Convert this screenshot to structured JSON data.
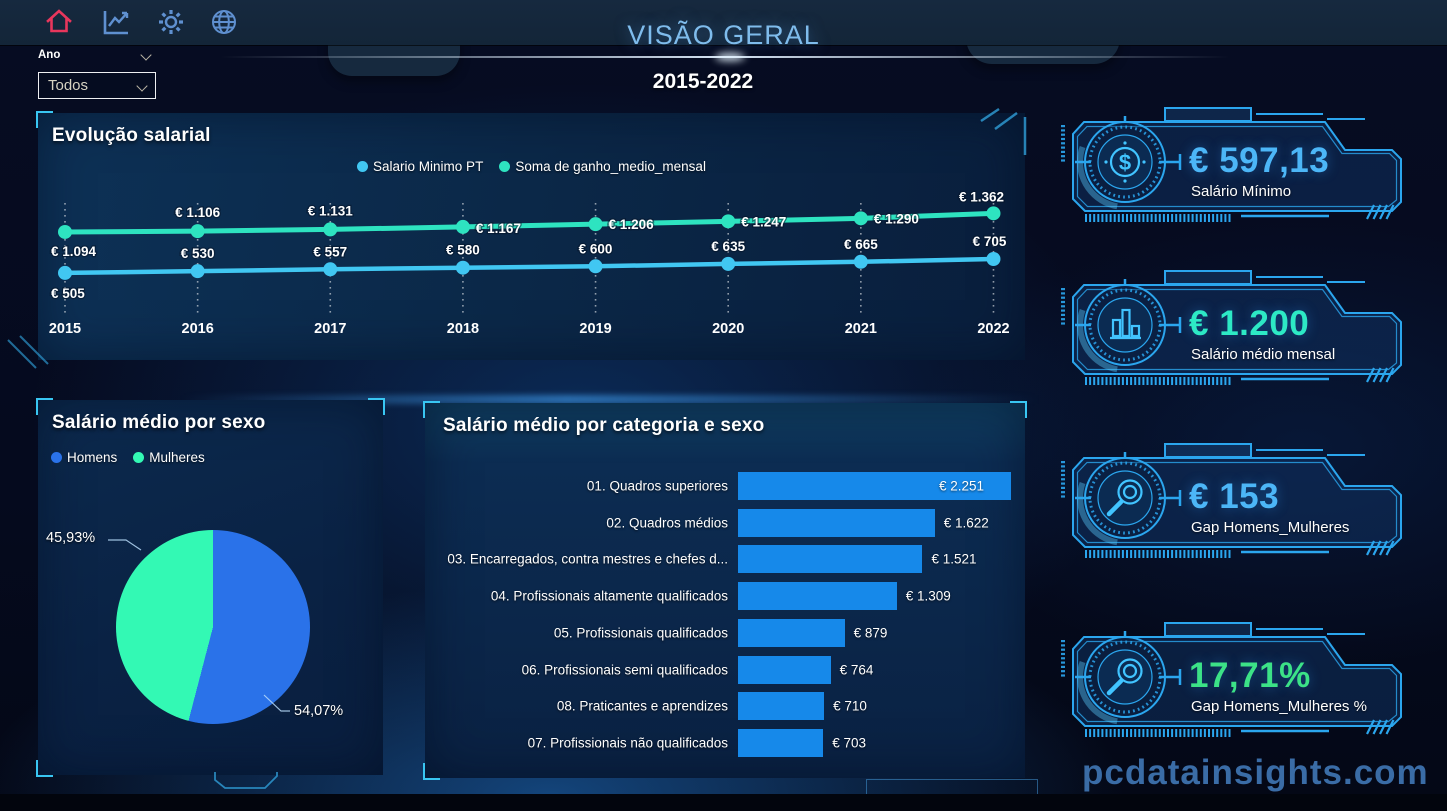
{
  "nav": {
    "items": [
      {
        "name": "home",
        "active": true
      },
      {
        "name": "line-chart",
        "active": false
      },
      {
        "name": "settings",
        "active": false
      },
      {
        "name": "globe",
        "active": false
      }
    ]
  },
  "header": {
    "title": "VISÃO GERAL",
    "subtitle": "2015-2022"
  },
  "filter": {
    "label": "Ano",
    "value": "Todos"
  },
  "watermark": "pcdatainsights.com",
  "colors": {
    "accent_cyan": "#35c1f1",
    "kpi_frame": "#2ba6ee",
    "bar_blue": "#1689ea",
    "pie_blue": "#2a72e9",
    "pie_green": "#33f9b4",
    "line_blue": "#41c7f2",
    "line_teal": "#2ee3c0",
    "title_blue": "#7fbcec",
    "home_red": "#e8365c",
    "nav_blue": "#5f90d0"
  },
  "chart_data": [
    {
      "type": "line",
      "title": "Evolução salarial",
      "x": [
        2015,
        2016,
        2017,
        2018,
        2019,
        2020,
        2021,
        2022
      ],
      "series": [
        {
          "name": "Salario Minimo PT",
          "color": "#41c7f2",
          "values": [
            505,
            530,
            557,
            580,
            600,
            635,
            665,
            705
          ],
          "labels": [
            "€ 505",
            "€ 530",
            "€ 557",
            "€ 580",
            "€ 600",
            "€ 635",
            "€ 665",
            "€ 705"
          ]
        },
        {
          "name": "Soma de ganho_medio_mensal",
          "color": "#2ee3c0",
          "values": [
            1094,
            1106,
            1131,
            1167,
            1206,
            1247,
            1290,
            1362
          ],
          "labels": [
            "€ 1.094",
            "€ 1.106",
            "€ 1.131",
            "€ 1.167",
            "€ 1.206",
            "€ 1.247",
            "€ 1.290",
            "€ 1.362"
          ]
        }
      ],
      "ylim": [
        0,
        1500
      ],
      "grid": "dotted-vertical-per-year",
      "legend_position": "top-center"
    },
    {
      "type": "pie",
      "title": "Salário médio por sexo",
      "legend_position": "top-left",
      "slices": [
        {
          "name": "Homens",
          "pct": 54.07,
          "label": "54,07%",
          "color": "#2a72e9"
        },
        {
          "name": "Mulheres",
          "pct": 45.93,
          "label": "45,93%",
          "color": "#33f9b4"
        }
      ]
    },
    {
      "type": "bar",
      "title": "Salário médio por categoria e sexo",
      "orientation": "horizontal",
      "categories": [
        "01. Quadros superiores",
        "02. Quadros médios",
        "03. Encarregados, contra mestres e chefes d...",
        "04. Profissionais altamente qualificados",
        "05. Profissionais qualificados",
        "06. Profissionais semi qualificados",
        "08. Praticantes e aprendizes",
        "07. Profissionais não qualificados"
      ],
      "values": [
        2251,
        1622,
        1521,
        1309,
        879,
        764,
        710,
        703
      ],
      "labels": [
        "€ 2.251",
        "€ 1.622",
        "€ 1.521",
        "€ 1.309",
        "€ 879",
        "€ 764",
        "€ 710",
        "€ 703"
      ],
      "bar_color": "#1689ea",
      "xlim": [
        0,
        2500
      ]
    }
  ],
  "kpis": [
    {
      "icon": "dollar-coin",
      "value": "€ 597,13",
      "label": "Salário Mínimo",
      "value_color": "#4cb6f7"
    },
    {
      "icon": "bar-chart",
      "value": "€ 1.200",
      "label": "Salário médio mensal",
      "value_color": "#2de9c5"
    },
    {
      "icon": "magnifier",
      "value": "€ 153",
      "label": "Gap Homens_Mulheres",
      "value_color": "#4cb6f7"
    },
    {
      "icon": "magnifier",
      "value": "17,71%",
      "label": "Gap Homens_Mulheres %",
      "value_color": "#3ce287"
    }
  ]
}
